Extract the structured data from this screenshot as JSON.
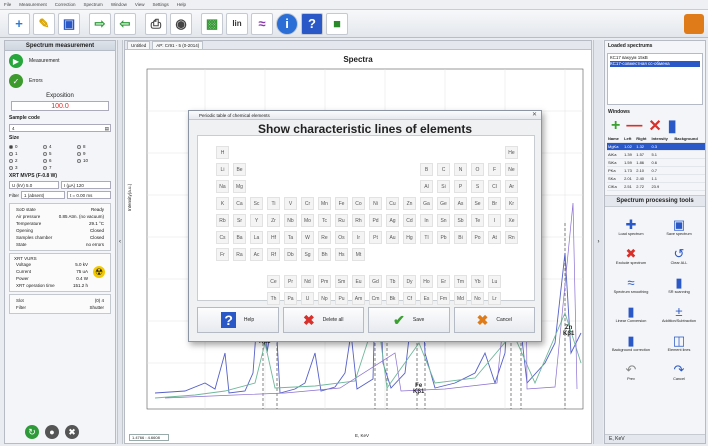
{
  "menubar": [
    "File",
    "Measurement",
    "Correction",
    "Spectrum",
    "Window",
    "View",
    "Settings",
    "Help"
  ],
  "toolbar": {
    "icons": [
      "new-icon",
      "open-icon",
      "save-icon",
      "export-icon",
      "import-icon",
      "print-icon",
      "camera-icon",
      "element-icon",
      "lin-icon",
      "peaks-icon",
      "info-icon",
      "help-icon",
      "exit-icon"
    ],
    "lin_label": "lin"
  },
  "left": {
    "title": "Spectrum measurement",
    "measurement": "Measurement",
    "error": "Errors",
    "exposition_label": "Exposition",
    "exposition_value": "100.0",
    "sample_code_label": "Sample code",
    "sample_code_value": "4",
    "size_label": "Size",
    "size_options": [
      "0",
      "4",
      "8",
      "1",
      "5",
      "9",
      "2",
      "6",
      "10",
      "3",
      "7"
    ],
    "size_selected": "0",
    "xrt_title": "XRT MVPS (F-0.8 W)",
    "voltage_field": "U (kV) 5.0",
    "current_field": "I (µA) 120",
    "filter_label": "Filter",
    "filter_value": "1 (absent)",
    "time_value": "t = 0.00 ms",
    "status_rows": [
      [
        "SoD state",
        "Ready"
      ],
      [
        "Air pressure",
        "0.85 Atm. (no vacuum)"
      ],
      [
        "Temperature",
        "29.1 °C"
      ],
      [
        "Opening",
        "Closed"
      ],
      [
        "Samples chamber",
        "Closed"
      ],
      [
        "State",
        "no errors"
      ]
    ],
    "xrt_state_title": "XRT VURS",
    "xrt_rows": [
      [
        "Voltage",
        "5.0 kV"
      ],
      [
        "Current",
        "75 uA"
      ],
      [
        "Power",
        "0.4 W"
      ],
      [
        "XRT operation time",
        "151.2 h"
      ]
    ],
    "slot_rows": [
      [
        "Slot",
        "(0) 4"
      ],
      [
        "Filter",
        "Shutter"
      ]
    ]
  },
  "center": {
    "tabs": [
      "Untitled",
      "AP: Cr91 - 5 (0-2014)"
    ],
    "chart_title": "Spectra",
    "ylabel": "Intensity(a.u.)",
    "xlabel": "E, KeV",
    "status_readout": "1.4766 : 4.6608",
    "annotations": [
      {
        "label": "Ti",
        "sub": "Kβ1"
      },
      {
        "label": "Fe",
        "sub": "Kβ1"
      },
      {
        "label": "Zn",
        "sub": "Kβ1"
      }
    ]
  },
  "dialog": {
    "title": "Periodic table of chemical elements",
    "heading": "Show characteristic lines of elements",
    "rows": [
      [
        "H",
        "",
        "",
        "",
        "",
        "",
        "",
        "",
        "",
        "",
        "",
        "",
        "",
        "",
        "",
        "",
        "",
        "He"
      ],
      [
        "Li",
        "Be",
        "",
        "",
        "",
        "",
        "",
        "",
        "",
        "",
        "",
        "",
        "B",
        "C",
        "N",
        "O",
        "F",
        "Ne"
      ],
      [
        "Na",
        "Mg",
        "",
        "",
        "",
        "",
        "",
        "",
        "",
        "",
        "",
        "",
        "Al",
        "Si",
        "P",
        "S",
        "Cl",
        "Ar"
      ],
      [
        "K",
        "Ca",
        "Sc",
        "Ti",
        "V",
        "Cr",
        "Mn",
        "Fe",
        "Co",
        "Ni",
        "Cu",
        "Zn",
        "Ga",
        "Ge",
        "As",
        "Se",
        "Br",
        "Kr"
      ],
      [
        "Rb",
        "Sr",
        "Y",
        "Zr",
        "Nb",
        "Mo",
        "Tc",
        "Ru",
        "Rh",
        "Pd",
        "Ag",
        "Cd",
        "In",
        "Sn",
        "Sb",
        "Te",
        "I",
        "Xe"
      ],
      [
        "Cs",
        "Ba",
        "La",
        "Hf",
        "Ta",
        "W",
        "Re",
        "Os",
        "Ir",
        "Pt",
        "Au",
        "Hg",
        "Tl",
        "Pb",
        "Bi",
        "Po",
        "At",
        "Rn"
      ],
      [
        "Fr",
        "Ra",
        "Ac",
        "Rf",
        "Db",
        "Sg",
        "Bh",
        "Hs",
        "Mt",
        "",
        "",
        "",
        "",
        "",
        "",
        "",
        "",
        ""
      ]
    ],
    "lanthanides": [
      "Ce",
      "Pr",
      "Nd",
      "Pm",
      "Sm",
      "Eu",
      "Gd",
      "Tb",
      "Dy",
      "Ho",
      "Er",
      "Tm",
      "Yb",
      "Lu"
    ],
    "actinides": [
      "Th",
      "Pa",
      "U",
      "Np",
      "Pu",
      "Am",
      "Cm",
      "Bk",
      "Cf",
      "Es",
      "Fm",
      "Md",
      "No",
      "Lr"
    ],
    "buttons": {
      "help": "Help",
      "delete_all": "Delete all",
      "save": "Save",
      "cancel": "Cancel"
    }
  },
  "right": {
    "loaded_title": "Loaded spectrums",
    "loaded_items": [
      "КС17 вакуум 15кВ",
      "КС17-совместная сс-обмена"
    ],
    "windows_title": "Windows",
    "table_headers": [
      "Name",
      "Left",
      "Right",
      "Intensity",
      "Background"
    ],
    "table_rows": [
      [
        "MgKa",
        "1.02",
        "1.32",
        "0.3",
        ""
      ],
      [
        "AlKa",
        "1.39",
        "1.57",
        "5.1",
        ""
      ],
      [
        "SiKa",
        "1.59",
        "1.86",
        "0.6",
        ""
      ],
      [
        "PKa",
        "1.73",
        "2.10",
        "0.7",
        ""
      ],
      [
        "SKa",
        "2.01",
        "2.40",
        "1.1",
        ""
      ],
      [
        "ClKa",
        "2.51",
        "2.72",
        "23.9",
        ""
      ]
    ],
    "tools_title": "Spectrum processing tools",
    "tools": [
      "Load spectrum",
      "Save spectrum",
      "Exclude spectrum",
      "Clear ALL",
      "Spectrum smoothing",
      "SR scanning",
      "Linear Conversion",
      "Addition/Subtraction",
      "Background correction",
      "Element lines",
      "Prev",
      "Cancel"
    ],
    "status": "E, KeV"
  }
}
